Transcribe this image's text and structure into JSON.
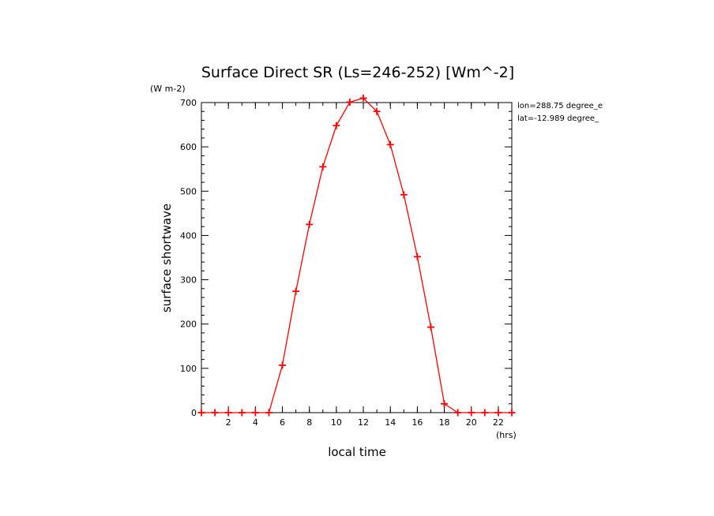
{
  "chart_data": {
    "type": "line",
    "title": "Surface Direct SR (Ls=246-252) [Wm^-2]",
    "xlabel": "local time",
    "x_unit": "(hrs)",
    "ylabel": "surface shortwave",
    "y_unit": "(W m-2)",
    "annotations": [
      "lon=288.75 degree_e",
      "lat=-12.989 degree_"
    ],
    "xlim": [
      0,
      23
    ],
    "ylim": [
      0,
      700
    ],
    "x_ticks": [
      2,
      4,
      6,
      8,
      10,
      12,
      14,
      16,
      18,
      20,
      22
    ],
    "y_ticks": [
      0,
      100,
      200,
      300,
      400,
      500,
      600,
      700
    ],
    "grid": false,
    "series": [
      {
        "color": "#ff0000",
        "marker": "plus",
        "x": [
          0,
          1,
          2,
          3,
          4,
          5,
          6,
          7,
          8,
          9,
          10,
          11,
          12,
          13,
          14,
          15,
          16,
          17,
          18,
          19,
          20,
          21,
          22,
          23
        ],
        "y": [
          0,
          0,
          0,
          0,
          0,
          0,
          107,
          274,
          425,
          555,
          648,
          701,
          710,
          680,
          605,
          492,
          352,
          193,
          20,
          0,
          0,
          0,
          0,
          0
        ]
      }
    ]
  }
}
